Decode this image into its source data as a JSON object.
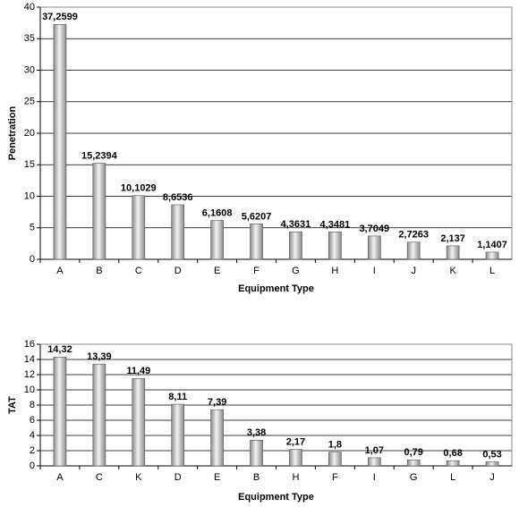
{
  "chart_data": [
    {
      "type": "bar",
      "y_label": "Penetration",
      "x_label": "Equipment Type",
      "categories": [
        "A",
        "B",
        "C",
        "D",
        "E",
        "F",
        "G",
        "H",
        "I",
        "J",
        "K",
        "L"
      ],
      "values": [
        37.2599,
        15.2394,
        10.1029,
        8.6536,
        6.1608,
        5.6207,
        4.3631,
        4.3481,
        3.7049,
        2.7263,
        2.137,
        1.1407
      ],
      "value_labels": [
        "37,2599",
        "15,2394",
        "10,1029",
        "8,6536",
        "6,1608",
        "5,6207",
        "4,3631",
        "4,3481",
        "3,7049",
        "2,7263",
        "2,137",
        "1,1407"
      ],
      "color": "#8a8a8a",
      "ylim": [
        0,
        40
      ],
      "yticks": [
        0,
        5,
        10,
        15,
        20,
        25,
        30,
        35,
        40
      ],
      "grid": true
    },
    {
      "type": "bar",
      "y_label": "TAT",
      "x_label": "Equipment Type",
      "categories": [
        "A",
        "C",
        "K",
        "D",
        "E",
        "B",
        "H",
        "F",
        "I",
        "G",
        "L",
        "J"
      ],
      "values": [
        14.32,
        13.39,
        11.49,
        8.11,
        7.39,
        3.38,
        2.17,
        1.8,
        1.07,
        0.79,
        0.68,
        0.53
      ],
      "value_labels": [
        "14,32",
        "13,39",
        "11,49",
        "8,11",
        "7,39",
        "3,38",
        "2,17",
        "1,8",
        "1,07",
        "0,79",
        "0,68",
        "0,53"
      ],
      "color": "#8a8a8a",
      "ylim": [
        0,
        16
      ],
      "yticks": [
        0,
        2,
        4,
        6,
        8,
        10,
        12,
        14,
        16
      ],
      "grid": true
    }
  ]
}
